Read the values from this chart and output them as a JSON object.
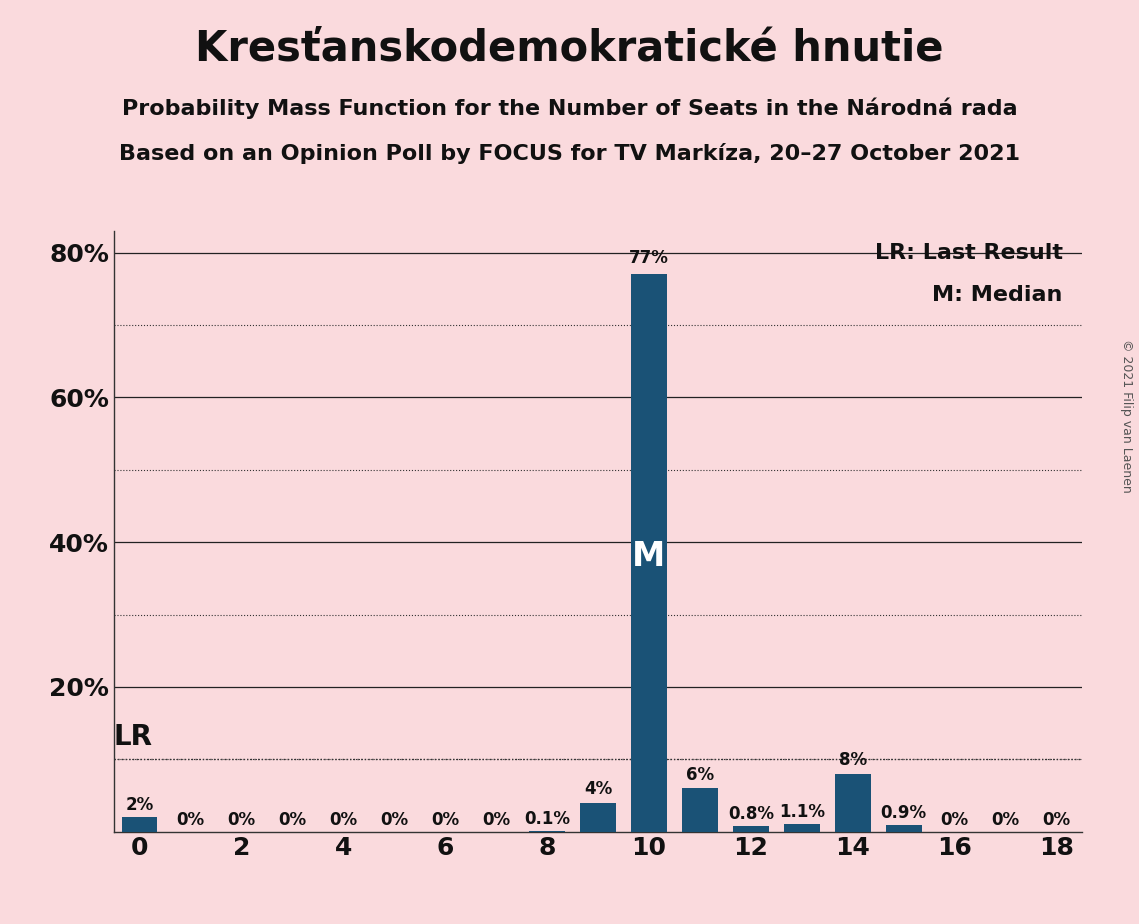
{
  "title": "Kresťanskodemokratické hnutie",
  "subtitle1": "Probability Mass Function for the Number of Seats in the Národná rada",
  "subtitle2": "Based on an Opinion Poll by FOCUS for TV Markíza, 20–27 October 2021",
  "copyright": "© 2021 Filip van Laenen",
  "legend_lr": "LR: Last Result",
  "legend_m": "M: Median",
  "background_color": "#fadadd",
  "bar_color": "#1a5276",
  "seats": [
    0,
    1,
    2,
    3,
    4,
    5,
    6,
    7,
    8,
    9,
    10,
    11,
    12,
    13,
    14,
    15,
    16,
    17,
    18
  ],
  "probabilities": [
    2.0,
    0.0,
    0.0,
    0.0,
    0.0,
    0.0,
    0.0,
    0.0,
    0.1,
    4.0,
    77.0,
    6.0,
    0.8,
    1.1,
    8.0,
    0.9,
    0.0,
    0.0,
    0.0
  ],
  "bar_labels": [
    "2%",
    "0%",
    "0%",
    "0%",
    "0%",
    "0%",
    "0%",
    "0%",
    "0.1%",
    "4%",
    "77%",
    "6%",
    "0.8%",
    "1.1%",
    "8%",
    "0.9%",
    "0%",
    "0%",
    "0%"
  ],
  "lr_seat": 0,
  "median_seat": 10,
  "xlim": [
    -0.5,
    18.5
  ],
  "ylim": [
    0,
    83
  ],
  "yticks": [
    20,
    40,
    60,
    80
  ],
  "ytick_labels": [
    "20%",
    "40%",
    "60%",
    "80%"
  ],
  "xtick_positions": [
    0,
    2,
    4,
    6,
    8,
    10,
    12,
    14,
    16,
    18
  ],
  "solid_gridlines": [
    20,
    40,
    60,
    80
  ],
  "dotted_gridlines": [
    10,
    30,
    50,
    70
  ],
  "lr_line_y": 10,
  "title_fontsize": 30,
  "subtitle_fontsize": 16,
  "axis_tick_fontsize": 18,
  "bar_label_fontsize": 12,
  "legend_fontsize": 16,
  "lr_label_fontsize": 20,
  "m_label_fontsize": 24,
  "copyright_fontsize": 9
}
